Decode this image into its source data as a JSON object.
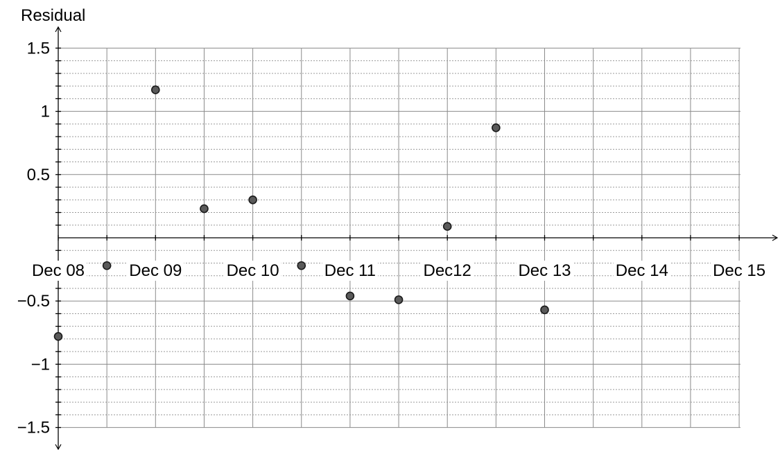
{
  "chart_data": {
    "type": "scatter",
    "title": "",
    "ylabel": "Residual",
    "xlabel": "",
    "x_categories": [
      "Dec 08",
      "Dec 09",
      "Dec 10",
      "Dec 11",
      "Dec12",
      "Dec 13",
      "Dec 14",
      "Dec 15"
    ],
    "x_range": [
      "Dec 08",
      "Dec 15"
    ],
    "ylim": [
      -1.5,
      1.5
    ],
    "y_ticks": [
      {
        "value": 1.5,
        "label": "1.5"
      },
      {
        "value": 1,
        "label": "1"
      },
      {
        "value": 0.5,
        "label": "0.5"
      },
      {
        "value": -0.5,
        "label": "−0.5"
      },
      {
        "value": -1,
        "label": "−1"
      },
      {
        "value": -1.5,
        "label": "−1.5"
      }
    ],
    "grid": true,
    "points": [
      {
        "x": "Dec 08",
        "y": -0.78
      },
      {
        "x": "Dec 08 12:00",
        "y": -0.22
      },
      {
        "x": "Dec 09",
        "y": 1.17
      },
      {
        "x": "Dec 09 12:00",
        "y": 0.23
      },
      {
        "x": "Dec 10",
        "y": 0.3
      },
      {
        "x": "Dec 10 12:00",
        "y": -0.22
      },
      {
        "x": "Dec 11",
        "y": -0.46
      },
      {
        "x": "Dec 11 12:00",
        "y": -0.49
      },
      {
        "x": "Dec 12",
        "y": 0.09
      },
      {
        "x": "Dec 12 12:00",
        "y": 0.87
      },
      {
        "x": "Dec 13",
        "y": -0.57
      }
    ]
  }
}
